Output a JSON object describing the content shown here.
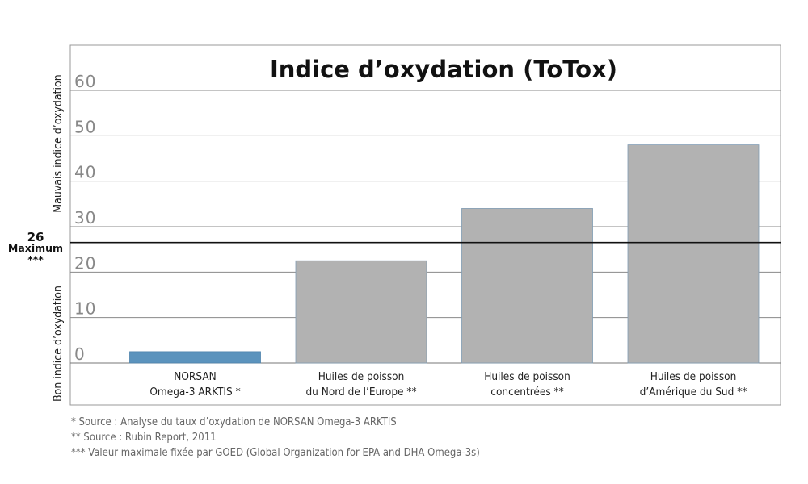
{
  "chart_data": {
    "type": "bar",
    "title": "Indice d’oxydation (ToTox)",
    "categories": [
      [
        "NORSAN",
        "Omega-3 ARKTIS *"
      ],
      [
        "Huiles de poisson",
        "du Nord de l’Europe **"
      ],
      [
        "Huiles de poisson",
        "concentrées **"
      ],
      [
        "Huiles de poisson",
        "d’Amérique du Sud **"
      ]
    ],
    "values": [
      2.5,
      22.5,
      34,
      48
    ],
    "colors": [
      "#5b93bd",
      "#b2b2b2",
      "#b2b2b2",
      "#b2b2b2"
    ],
    "ylim": [
      0,
      60
    ],
    "yticks": [
      0,
      10,
      20,
      30,
      40,
      50,
      60
    ],
    "grid": true,
    "reference_line": {
      "value": 26.5,
      "label": [
        "26",
        "Maximum",
        "***"
      ]
    },
    "side_labels": {
      "upper": "Mauvais indice d’oxydation",
      "lower": "Bon indice d’oxydation"
    }
  },
  "footnotes": [
    "*    Source : Analyse du taux d’oxydation de NORSAN Omega-3 ARKTIS",
    "**  Source : Rubin Report, 2011",
    "*** Valeur maximale fixée par GOED (Global Organization for EPA and DHA Omega-3s)"
  ]
}
